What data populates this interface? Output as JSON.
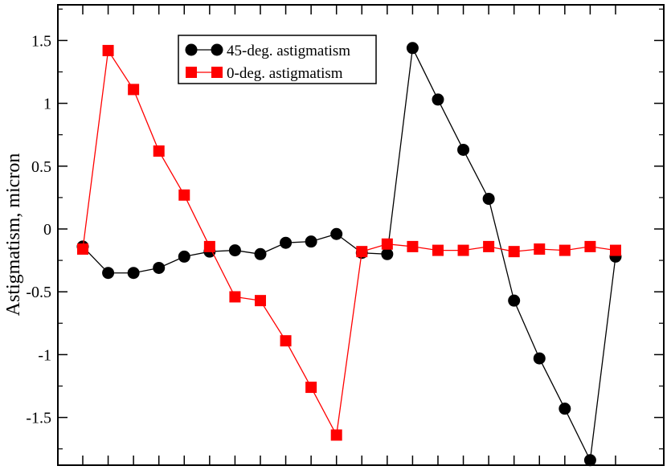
{
  "chart_data": {
    "type": "line",
    "title": "",
    "xlabel": "",
    "ylabel": "Astigmatism, micron",
    "ylim": [
      -1.85,
      1.85
    ],
    "xlim": [
      0,
      22.5
    ],
    "x": [
      1,
      2,
      3,
      4,
      5,
      6,
      7,
      8,
      9,
      10,
      11,
      12,
      13,
      14,
      15,
      16,
      17,
      18,
      19,
      20,
      21,
      22
    ],
    "x_ticks": [
      1,
      2,
      3,
      4,
      5,
      6,
      7,
      8,
      9,
      10,
      11,
      12,
      13,
      14,
      15,
      16,
      17,
      18,
      19,
      20,
      21,
      22
    ],
    "y_ticks": [
      {
        "value": 1.5,
        "label": "1.5"
      },
      {
        "value": 1.0,
        "label": "1"
      },
      {
        "value": 0.5,
        "label": "0.5"
      },
      {
        "value": 0.0,
        "label": "0"
      },
      {
        "value": -0.5,
        "label": "-0.5"
      },
      {
        "value": -1.0,
        "label": "-1"
      },
      {
        "value": -1.5,
        "label": "-1.5"
      }
    ],
    "grid": false,
    "legend_position": "top-center",
    "series": [
      {
        "name": "45-deg.  astigmatism",
        "color": "#000000",
        "marker": "circle",
        "values": [
          -0.14,
          -0.35,
          -0.35,
          -0.31,
          -0.22,
          -0.18,
          -0.17,
          -0.2,
          -0.11,
          -0.1,
          -0.04,
          -0.19,
          -0.2,
          1.44,
          1.03,
          0.63,
          0.24,
          -0.57,
          -1.03,
          -1.43,
          -1.84,
          -0.22
        ]
      },
      {
        "name": "0-deg. astigmatism",
        "color": "#ff0000",
        "marker": "square",
        "values": [
          -0.16,
          1.42,
          1.11,
          0.62,
          0.27,
          -0.14,
          -0.54,
          -0.57,
          -0.89,
          -1.26,
          -1.64,
          -0.18,
          -0.12,
          -0.14,
          -0.17,
          -0.17,
          -0.14,
          -0.18,
          -0.16,
          -0.17,
          -0.14,
          -0.17
        ]
      }
    ]
  }
}
